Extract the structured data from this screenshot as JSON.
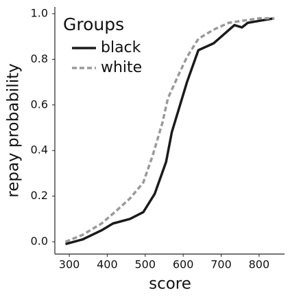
{
  "chart_data": {
    "type": "line",
    "xlabel": "score",
    "ylabel": "repay probability",
    "legend_title": "Groups",
    "legend_loc": "upper left",
    "xlim": [
      262,
      867
    ],
    "ylim": [
      -0.054,
      1.03
    ],
    "xticks": [
      300,
      400,
      500,
      600,
      700,
      800
    ],
    "yticks": [
      {
        "value": 0,
        "label": "0.0"
      },
      0.2,
      0.4,
      0.6,
      0.8,
      {
        "value": 1,
        "label": "1.0"
      }
    ],
    "series": [
      {
        "name": "black",
        "color": "#1a1a1a",
        "dash": false,
        "x": [
          290,
          335,
          385,
          415,
          460,
          495,
          525,
          555,
          570,
          590,
          610,
          640,
          680,
          735,
          755,
          770,
          805,
          840
        ],
        "values": [
          -0.01,
          0.01,
          0.05,
          0.08,
          0.1,
          0.13,
          0.21,
          0.35,
          0.48,
          0.59,
          0.7,
          0.84,
          0.87,
          0.95,
          0.94,
          0.96,
          0.97,
          0.98
        ]
      },
      {
        "name": "white",
        "color": "#9a9a9a",
        "dash": true,
        "x": [
          290,
          335,
          385,
          420,
          460,
          495,
          520,
          545,
          560,
          590,
          610,
          640,
          680,
          720,
          760,
          800,
          840
        ],
        "values": [
          0.0,
          0.03,
          0.08,
          0.13,
          0.19,
          0.26,
          0.38,
          0.52,
          0.63,
          0.74,
          0.81,
          0.89,
          0.93,
          0.96,
          0.97,
          0.98,
          0.98
        ]
      }
    ]
  }
}
